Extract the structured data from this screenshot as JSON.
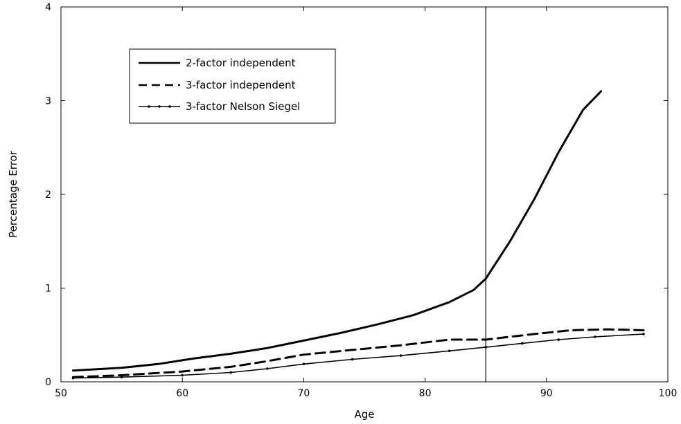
{
  "chart_data": {
    "type": "line",
    "title": "",
    "xlabel": "Age",
    "ylabel": "Percentage Error",
    "xlim": [
      50,
      100
    ],
    "ylim": [
      0,
      4
    ],
    "xticks": [
      50,
      60,
      70,
      80,
      90,
      100
    ],
    "yticks": [
      0,
      1,
      2,
      3,
      4
    ],
    "grid": false,
    "legend_position": "top-left",
    "vertical_line_x": 85,
    "series": [
      {
        "name": "2-factor independent",
        "style": "solid",
        "color": "#000000",
        "x": [
          51,
          55,
          58,
          61,
          64,
          67,
          70,
          73,
          76,
          79,
          82,
          84,
          85,
          87,
          89,
          91,
          93,
          94.5
        ],
        "y": [
          0.12,
          0.15,
          0.19,
          0.25,
          0.3,
          0.36,
          0.44,
          0.52,
          0.61,
          0.71,
          0.85,
          0.98,
          1.1,
          1.5,
          1.95,
          2.45,
          2.9,
          3.1
        ]
      },
      {
        "name": "3-factor independent",
        "style": "dashed",
        "color": "#000000",
        "x": [
          51,
          55,
          60,
          64,
          67,
          70,
          74,
          78,
          82,
          85,
          89,
          92,
          95,
          98
        ],
        "y": [
          0.05,
          0.07,
          0.11,
          0.16,
          0.22,
          0.29,
          0.34,
          0.39,
          0.45,
          0.45,
          0.51,
          0.55,
          0.56,
          0.55
        ]
      },
      {
        "name": "3-factor Nelson Siegel",
        "style": "dotted-solid",
        "color": "#000000",
        "x": [
          51,
          55,
          60,
          64,
          67,
          70,
          74,
          78,
          82,
          85,
          88,
          91,
          94,
          98
        ],
        "y": [
          0.04,
          0.05,
          0.07,
          0.1,
          0.14,
          0.19,
          0.24,
          0.28,
          0.33,
          0.37,
          0.41,
          0.45,
          0.48,
          0.51
        ]
      }
    ]
  }
}
